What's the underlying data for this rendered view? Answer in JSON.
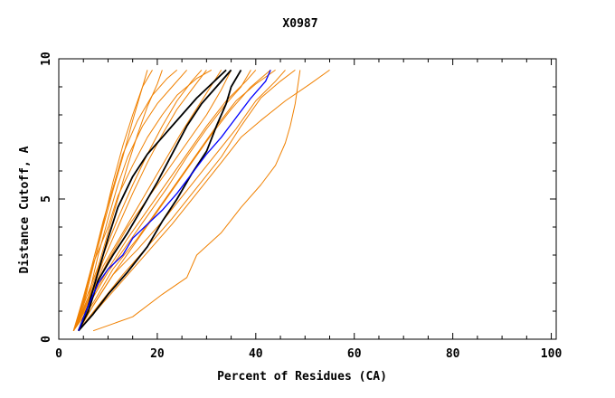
{
  "chart_data": {
    "type": "line",
    "title": "X0987",
    "xlabel": "Percent of Residues (CA)",
    "ylabel": "Distance Cutoff, A",
    "xlim": [
      0,
      101
    ],
    "ylim": [
      0,
      10
    ],
    "x_ticks": [
      0,
      20,
      40,
      60,
      80,
      100
    ],
    "y_ticks": [
      0,
      5,
      10
    ],
    "grid": false,
    "legend": "none",
    "colors": {
      "orange": "#f08000",
      "black": "#000000",
      "blue": "#0000ff"
    },
    "series": [
      {
        "name": "model-orange-1",
        "color": "orange",
        "points": [
          [
            3,
            0.3
          ],
          [
            5,
            1.2
          ],
          [
            7,
            2.6
          ],
          [
            9,
            4
          ],
          [
            11,
            5.3
          ],
          [
            13,
            6.5
          ],
          [
            15,
            7.8
          ],
          [
            17,
            9
          ],
          [
            19,
            9.6
          ]
        ]
      },
      {
        "name": "model-orange-2",
        "color": "orange",
        "points": [
          [
            3,
            0.3
          ],
          [
            5,
            1.3
          ],
          [
            7,
            2.8
          ],
          [
            9,
            4.1
          ],
          [
            11,
            5.6
          ],
          [
            13,
            6.9
          ],
          [
            15,
            8
          ],
          [
            17,
            9
          ],
          [
            18,
            9.6
          ]
        ]
      },
      {
        "name": "model-orange-3",
        "color": "orange",
        "points": [
          [
            3,
            0.3
          ],
          [
            6,
            1.5
          ],
          [
            8,
            3
          ],
          [
            10,
            4.3
          ],
          [
            12,
            5.5
          ],
          [
            14,
            6.5
          ],
          [
            17,
            7.6
          ],
          [
            20,
            8.4
          ],
          [
            23,
            9
          ],
          [
            26,
            9.6
          ]
        ]
      },
      {
        "name": "model-orange-4",
        "color": "orange",
        "points": [
          [
            3,
            0.3
          ],
          [
            6,
            1.5
          ],
          [
            9,
            3
          ],
          [
            12,
            4.3
          ],
          [
            15,
            5.5
          ],
          [
            18,
            6.6
          ],
          [
            21,
            7.6
          ],
          [
            24,
            8.5
          ],
          [
            27,
            9.2
          ],
          [
            29,
            9.6
          ]
        ]
      },
      {
        "name": "model-orange-5",
        "color": "orange",
        "points": [
          [
            3,
            0.3
          ],
          [
            5,
            1.2
          ],
          [
            8,
            2.6
          ],
          [
            10,
            3.8
          ],
          [
            12,
            5
          ],
          [
            14,
            6.2
          ],
          [
            16,
            7.3
          ],
          [
            18,
            8.3
          ],
          [
            20,
            9.1
          ],
          [
            21,
            9.6
          ]
        ]
      },
      {
        "name": "model-orange-6",
        "color": "orange",
        "points": [
          [
            3,
            0.3
          ],
          [
            6,
            1.4
          ],
          [
            9,
            2.8
          ],
          [
            12,
            4
          ],
          [
            15,
            5.2
          ],
          [
            18,
            6.3
          ],
          [
            21,
            7.3
          ],
          [
            24,
            8.2
          ],
          [
            27,
            8.9
          ],
          [
            30,
            9.6
          ]
        ]
      },
      {
        "name": "model-orange-7",
        "color": "orange",
        "points": [
          [
            3,
            0.3
          ],
          [
            6,
            1.4
          ],
          [
            10,
            2.8
          ],
          [
            14,
            4
          ],
          [
            18,
            5
          ],
          [
            22,
            6
          ],
          [
            26,
            7
          ],
          [
            30,
            8
          ],
          [
            33,
            8.9
          ],
          [
            35,
            9.6
          ]
        ]
      },
      {
        "name": "model-orange-8",
        "color": "orange",
        "points": [
          [
            3,
            0.3
          ],
          [
            6,
            1.3
          ],
          [
            10,
            2.5
          ],
          [
            14,
            3.6
          ],
          [
            18,
            4.6
          ],
          [
            22,
            5.6
          ],
          [
            26,
            6.6
          ],
          [
            30,
            7.6
          ],
          [
            34,
            8.5
          ],
          [
            38,
            9.2
          ],
          [
            40,
            9.6
          ]
        ]
      },
      {
        "name": "model-orange-9",
        "color": "orange",
        "points": [
          [
            3,
            0.3
          ],
          [
            7,
            1.3
          ],
          [
            11,
            2.5
          ],
          [
            16,
            3.6
          ],
          [
            20,
            4.6
          ],
          [
            24,
            5.6
          ],
          [
            28,
            6.6
          ],
          [
            32,
            7.6
          ],
          [
            36,
            8.5
          ],
          [
            40,
            9.1
          ],
          [
            44,
            9.6
          ]
        ]
      },
      {
        "name": "model-orange-10",
        "color": "orange",
        "points": [
          [
            3,
            0.3
          ],
          [
            6,
            1.2
          ],
          [
            10,
            2.4
          ],
          [
            14,
            3.4
          ],
          [
            18,
            4.4
          ],
          [
            22,
            5.4
          ],
          [
            26,
            6.5
          ],
          [
            30,
            7.5
          ],
          [
            34,
            8.4
          ],
          [
            37,
            9
          ],
          [
            39,
            9.6
          ]
        ]
      },
      {
        "name": "model-orange-11",
        "color": "orange",
        "points": [
          [
            3,
            0.3
          ],
          [
            6,
            1.3
          ],
          [
            9,
            2.6
          ],
          [
            13,
            3.8
          ],
          [
            17,
            5
          ],
          [
            21,
            6.2
          ],
          [
            25,
            7.4
          ],
          [
            29,
            8.5
          ],
          [
            33,
            9.6
          ]
        ]
      },
      {
        "name": "model-orange-12",
        "color": "orange",
        "points": [
          [
            4,
            0.3
          ],
          [
            7,
            1.2
          ],
          [
            11,
            2.3
          ],
          [
            15,
            3.3
          ],
          [
            19,
            4.3
          ],
          [
            23,
            5.3
          ],
          [
            27,
            6.3
          ],
          [
            31,
            7.3
          ],
          [
            35,
            8.2
          ],
          [
            39,
            9
          ],
          [
            43,
            9.6
          ]
        ]
      },
      {
        "name": "model-orange-13",
        "color": "orange",
        "points": [
          [
            4,
            0.3
          ],
          [
            7,
            1.2
          ],
          [
            11,
            2.3
          ],
          [
            16,
            3.2
          ],
          [
            21,
            4.2
          ],
          [
            26,
            5.3
          ],
          [
            31,
            6.4
          ],
          [
            36,
            7.5
          ],
          [
            40,
            8.5
          ],
          [
            44,
            9.2
          ],
          [
            46,
            9.6
          ]
        ]
      },
      {
        "name": "model-orange-14",
        "color": "orange",
        "points": [
          [
            4,
            0.3
          ],
          [
            8,
            1.2
          ],
          [
            13,
            2.3
          ],
          [
            18,
            3.3
          ],
          [
            23,
            4.3
          ],
          [
            28,
            5.4
          ],
          [
            33,
            6.5
          ],
          [
            37,
            7.6
          ],
          [
            41,
            8.6
          ],
          [
            45,
            9.2
          ],
          [
            48,
            9.6
          ]
        ]
      },
      {
        "name": "model-orange-15",
        "color": "orange",
        "points": [
          [
            7,
            0.3
          ],
          [
            15,
            0.8
          ],
          [
            21,
            1.6
          ],
          [
            26,
            2.2
          ],
          [
            28,
            3
          ],
          [
            33,
            3.8
          ],
          [
            37,
            4.7
          ],
          [
            41,
            5.5
          ],
          [
            44,
            6.2
          ],
          [
            46,
            7
          ],
          [
            47,
            7.6
          ],
          [
            48,
            8.4
          ],
          [
            49,
            9.6
          ]
        ]
      },
      {
        "name": "model-orange-16",
        "color": "orange",
        "points": [
          [
            4,
            0.3
          ],
          [
            8,
            1.1
          ],
          [
            13,
            2.1
          ],
          [
            18,
            3.1
          ],
          [
            23,
            4.1
          ],
          [
            28,
            5.2
          ],
          [
            33,
            6.3
          ],
          [
            37,
            7.2
          ],
          [
            41,
            7.8
          ],
          [
            46,
            8.5
          ],
          [
            51,
            9.1
          ],
          [
            55,
            9.6
          ]
        ]
      },
      {
        "name": "model-orange-17",
        "color": "orange",
        "points": [
          [
            3,
            0.3
          ],
          [
            5,
            1.5
          ],
          [
            7,
            2.8
          ],
          [
            9,
            4.2
          ],
          [
            11,
            5.4
          ],
          [
            13,
            6.6
          ],
          [
            16,
            7.8
          ],
          [
            19,
            8.7
          ],
          [
            22,
            9.3
          ],
          [
            24,
            9.6
          ]
        ]
      },
      {
        "name": "model-orange-18",
        "color": "orange",
        "points": [
          [
            3,
            0.3
          ],
          [
            5,
            1.4
          ],
          [
            7,
            2.7
          ],
          [
            10,
            4
          ],
          [
            12,
            5.1
          ],
          [
            15,
            6.2
          ],
          [
            18,
            7.2
          ],
          [
            21,
            8
          ],
          [
            24,
            8.7
          ],
          [
            28,
            9.3
          ],
          [
            31,
            9.6
          ]
        ]
      },
      {
        "name": "model-black-1",
        "color": "black",
        "points": [
          [
            4,
            0.3
          ],
          [
            6,
            1.2
          ],
          [
            8,
            2.4
          ],
          [
            10,
            3.6
          ],
          [
            12,
            4.7
          ],
          [
            15,
            5.8
          ],
          [
            18,
            6.6
          ],
          [
            21,
            7.2
          ],
          [
            23,
            7.6
          ],
          [
            25,
            8
          ],
          [
            28,
            8.6
          ],
          [
            31,
            9.1
          ],
          [
            34,
            9.6
          ]
        ]
      },
      {
        "name": "model-black-2",
        "color": "black",
        "points": [
          [
            4,
            0.3
          ],
          [
            6,
            1
          ],
          [
            8,
            2.1
          ],
          [
            11,
            3
          ],
          [
            14,
            3.8
          ],
          [
            17,
            4.7
          ],
          [
            20,
            5.6
          ],
          [
            23,
            6.6
          ],
          [
            26,
            7.6
          ],
          [
            29,
            8.4
          ],
          [
            32,
            9
          ],
          [
            35,
            9.6
          ]
        ]
      },
      {
        "name": "model-black-3",
        "color": "black",
        "points": [
          [
            4,
            0.3
          ],
          [
            7,
            0.9
          ],
          [
            10,
            1.6
          ],
          [
            14,
            2.4
          ],
          [
            18,
            3.3
          ],
          [
            21,
            4.2
          ],
          [
            24,
            5
          ],
          [
            27,
            5.9
          ],
          [
            30,
            6.7
          ],
          [
            32,
            7.6
          ],
          [
            34,
            8.4
          ],
          [
            35,
            9
          ],
          [
            37,
            9.6
          ]
        ]
      },
      {
        "name": "model-blue",
        "color": "blue",
        "points": [
          [
            4,
            0.3
          ],
          [
            6,
            1.2
          ],
          [
            8,
            2
          ],
          [
            10,
            2.5
          ],
          [
            13,
            3
          ],
          [
            15,
            3.6
          ],
          [
            18,
            4.1
          ],
          [
            21,
            4.6
          ],
          [
            24,
            5.2
          ],
          [
            27,
            5.9
          ],
          [
            30,
            6.6
          ],
          [
            33,
            7.2
          ],
          [
            36,
            7.9
          ],
          [
            39,
            8.6
          ],
          [
            42,
            9.2
          ],
          [
            43,
            9.6
          ]
        ]
      }
    ]
  }
}
